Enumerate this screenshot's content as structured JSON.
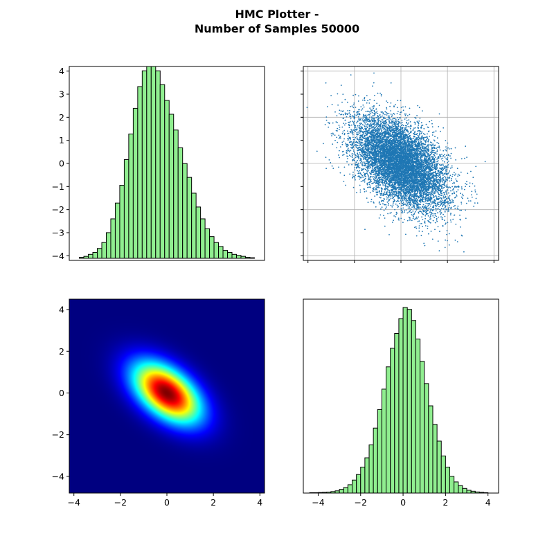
{
  "title_lines": [
    "HMC Plotter -",
    "Number of Samples 50000"
  ],
  "colors": {
    "hist_fill": "#90ee90",
    "hist_edge": "#000000",
    "scatter": "#1f77b4",
    "grid": "#b0b0b0",
    "colormap": "jet"
  },
  "chart_data": [
    {
      "panel": "top-left",
      "type": "bar",
      "subtype": "histogram",
      "orientation": "vertical",
      "ylim": [
        -4.2,
        4.2
      ],
      "yticks": [
        -4,
        -3,
        -2,
        -1,
        0,
        1,
        2,
        3,
        4
      ],
      "x_axis_visible": false,
      "bin_edges": [
        -3.8,
        -3.6,
        -3.4,
        -3.2,
        -3.0,
        -2.8,
        -2.6,
        -2.4,
        -2.2,
        -2.0,
        -1.8,
        -1.6,
        -1.4,
        -1.2,
        -1.0,
        -0.8,
        -0.6,
        -0.4,
        -0.2,
        0.0,
        0.2,
        0.4,
        0.6,
        0.8,
        1.0,
        1.2,
        1.4,
        1.6,
        1.8,
        2.0,
        2.2,
        2.4,
        2.6,
        2.8,
        3.0,
        3.2,
        3.4,
        3.6,
        3.8,
        4.0
      ],
      "values": [
        0.005,
        0.01,
        0.02,
        0.03,
        0.05,
        0.08,
        0.13,
        0.2,
        0.28,
        0.37,
        0.5,
        0.63,
        0.76,
        0.87,
        0.95,
        1.0,
        1.0,
        0.95,
        0.88,
        0.8,
        0.73,
        0.65,
        0.56,
        0.48,
        0.41,
        0.33,
        0.26,
        0.2,
        0.15,
        0.11,
        0.08,
        0.06,
        0.04,
        0.03,
        0.02,
        0.015,
        0.01,
        0.005,
        0.003
      ],
      "value_unit": "relative frequency (peak = 1)"
    },
    {
      "panel": "top-right",
      "type": "scatter",
      "n_points": 50000,
      "xlim": [
        -4.2,
        4.2
      ],
      "ylim": [
        -4.2,
        4.2
      ],
      "ticks": [
        -4,
        -2,
        0,
        2,
        4
      ],
      "tick_labels_visible": false,
      "grid": true,
      "distribution": {
        "mean": [
          0,
          0
        ],
        "std": [
          1,
          1
        ],
        "correlation": -0.5
      }
    },
    {
      "panel": "bottom-left",
      "type": "heatmap",
      "colormap": "jet",
      "xlim": [
        -4.2,
        4.2
      ],
      "ylim": [
        -4.8,
        4.5
      ],
      "xticks": [
        -4,
        -2,
        0,
        2,
        4
      ],
      "yticks": [
        -4,
        -2,
        0,
        2,
        4
      ],
      "density": {
        "mean": [
          0,
          0
        ],
        "std": [
          1,
          1
        ],
        "correlation": -0.5
      }
    },
    {
      "panel": "bottom-right",
      "type": "bar",
      "subtype": "histogram",
      "orientation": "vertical",
      "xlim": [
        -4.7,
        4.5
      ],
      "xticks": [
        -4,
        -2,
        0,
        2,
        4
      ],
      "y_axis_visible": false,
      "bin_edges": [
        -4.4,
        -4.2,
        -4.0,
        -3.8,
        -3.6,
        -3.4,
        -3.2,
        -3.0,
        -2.8,
        -2.6,
        -2.4,
        -2.2,
        -2.0,
        -1.8,
        -1.6,
        -1.4,
        -1.2,
        -1.0,
        -0.8,
        -0.6,
        -0.4,
        -0.2,
        0.0,
        0.2,
        0.4,
        0.6,
        0.8,
        1.0,
        1.2,
        1.4,
        1.6,
        1.8,
        2.0,
        2.2,
        2.4,
        2.6,
        2.8,
        3.0,
        3.2,
        3.4,
        3.6,
        3.8,
        4.0
      ],
      "values": [
        0.002,
        0.002,
        0.003,
        0.004,
        0.005,
        0.008,
        0.012,
        0.02,
        0.03,
        0.045,
        0.07,
        0.1,
        0.14,
        0.19,
        0.26,
        0.35,
        0.45,
        0.56,
        0.68,
        0.78,
        0.86,
        0.94,
        1.0,
        0.99,
        0.93,
        0.83,
        0.71,
        0.59,
        0.47,
        0.37,
        0.28,
        0.2,
        0.14,
        0.09,
        0.06,
        0.04,
        0.025,
        0.015,
        0.01,
        0.006,
        0.004,
        0.002
      ],
      "value_unit": "relative frequency (peak = 1)"
    }
  ]
}
